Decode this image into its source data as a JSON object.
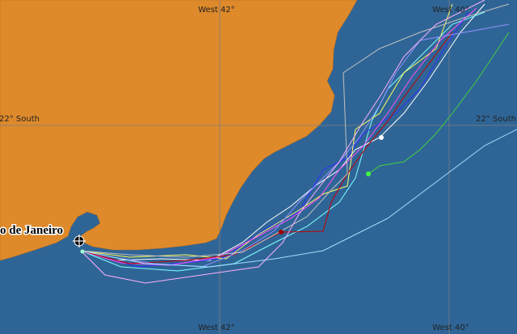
{
  "map": {
    "labels": {
      "top_west_42": "West 42°",
      "top_west_40": "West 40°",
      "bottom_west_42": "West 42°",
      "bottom_west_40": "West 40°",
      "left_22_south": "22° South",
      "right_22_south": "22° South",
      "city": "o de Janeiro"
    }
  }
}
